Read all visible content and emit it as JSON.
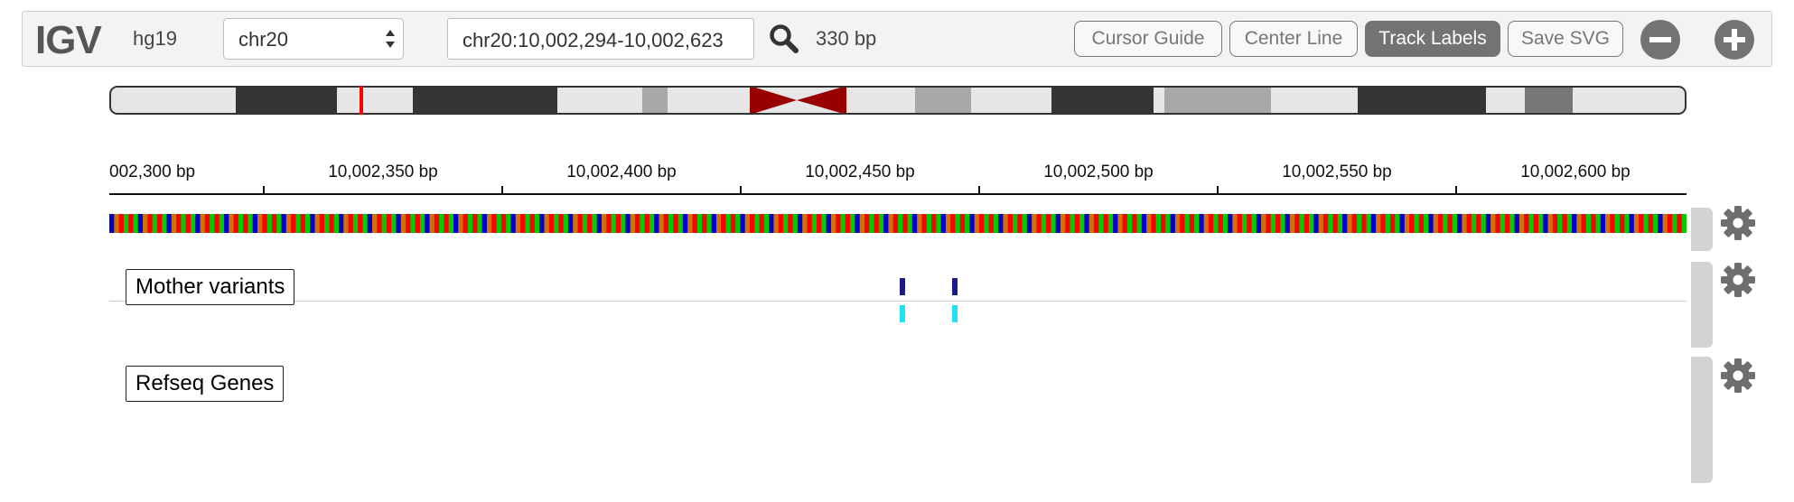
{
  "navbar": {
    "logo": "IGV",
    "genome": "hg19",
    "chromosome": "chr20",
    "locus": "chr20:10,002,294-10,002,623",
    "bp_width": "330 bp",
    "buttons": {
      "cursor_guide": "Cursor Guide",
      "center_line": "Center Line",
      "track_labels": "Track Labels",
      "save_svg": "Save SVG"
    },
    "active_button": "track_labels"
  },
  "ruler": {
    "ticks": [
      "002,300 bp",
      "10,002,350 bp",
      "10,002,400 bp",
      "10,002,450 bp",
      "10,002,500 bp",
      "10,002,550 bp",
      "10,002,600 bp"
    ]
  },
  "tracks": {
    "mother_variants": "Mother variants",
    "refseq_genes": "Refseq Genes"
  },
  "colors": {
    "base_A": "#00cc00",
    "base_C": "#0000cc",
    "base_G": "#d17105",
    "base_T": "#ff0000",
    "variant_top": "#1a1a8c",
    "variant_bottom": "#22e1f0",
    "centromere": "#990000",
    "cytoband_marker": "#ff0000",
    "active_button_bg": "#737373"
  },
  "icons": {
    "search": "search-icon",
    "zoom_out": "zoom-out-icon",
    "zoom_in": "zoom-in-icon",
    "gear": "gear-icon"
  }
}
